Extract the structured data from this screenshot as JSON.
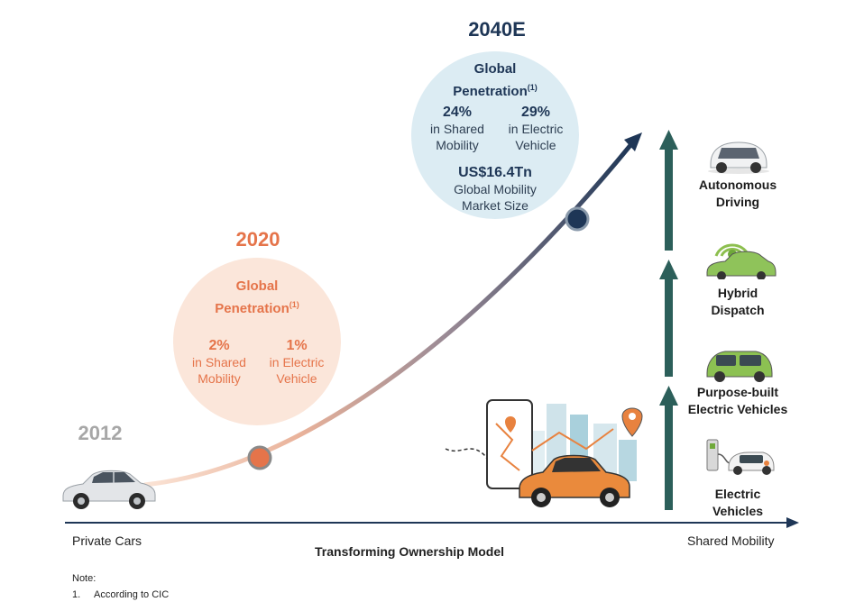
{
  "milestones": {
    "y2012": {
      "year": "2012"
    },
    "y2020": {
      "year": "2020",
      "heading_line1": "Global",
      "heading_line2": "Penetration",
      "note_ref": "(1)",
      "shared_value": "2%",
      "shared_line1": "in Shared",
      "shared_line2": "Mobility",
      "electric_value": "1%",
      "electric_line1": "in Electric",
      "electric_line2": "Vehicle"
    },
    "y2040": {
      "year": "2040E",
      "heading_line1": "Global",
      "heading_line2": "Penetration",
      "note_ref": "(1)",
      "shared_value": "24%",
      "shared_line1": "in Shared",
      "shared_line2": "Mobility",
      "electric_value": "29%",
      "electric_line1": "in Electric",
      "electric_line2": "Vehicle",
      "market_value": "US$16.4Tn",
      "market_line1": "Global Mobility",
      "market_line2": "Market Size"
    }
  },
  "stages": [
    {
      "line1": "Autonomous",
      "line2": "Driving"
    },
    {
      "line1": "Hybrid",
      "line2": "Dispatch"
    },
    {
      "line1": "Purpose-built",
      "line2": "Electric Vehicles"
    },
    {
      "line1": "Electric",
      "line2": "Vehicles"
    }
  ],
  "axis": {
    "left_label": "Private Cars",
    "center_label": "Transforming Ownership Model",
    "right_label": "Shared Mobility"
  },
  "note": {
    "title": "Note:",
    "item_number": "1.",
    "item_text": "According to CIC"
  },
  "colors": {
    "orange": "#e5744a",
    "navy": "#1e3656",
    "teal_arrow": "#2c5f5a",
    "grey_year": "#a7a7a7",
    "bubble_2020": "#fbe6da",
    "bubble_2040": "#dcecf3"
  },
  "icons": [
    "private-car-icon",
    "city-map-taxi-icon",
    "autonomous-car-icon",
    "hybrid-dispatch-car-icon",
    "purpose-built-ev-icon",
    "ev-charging-icon"
  ]
}
